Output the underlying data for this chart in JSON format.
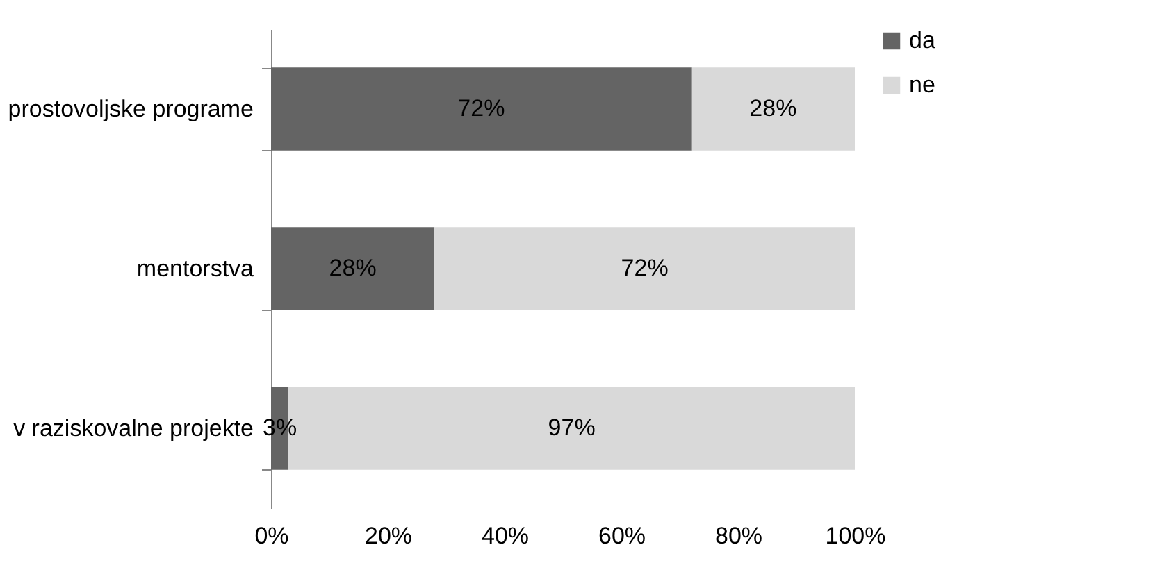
{
  "chart_data": {
    "type": "bar",
    "orientation": "horizontal",
    "stacked": true,
    "categories": [
      "prostovoljske programe",
      "mentorstva",
      "v raziskovalne projekte"
    ],
    "series": [
      {
        "name": "da",
        "color": "#646464",
        "values": [
          72,
          28,
          3
        ],
        "value_labels": [
          "72%",
          "28%",
          "3%"
        ]
      },
      {
        "name": "ne",
        "color": "#d9d9d9",
        "values": [
          28,
          72,
          97
        ],
        "value_labels": [
          "28%",
          "72%",
          "97%"
        ]
      }
    ],
    "xlim": [
      0,
      100
    ],
    "xticks": [
      {
        "value": 0,
        "label": "0%"
      },
      {
        "value": 20,
        "label": "20%"
      },
      {
        "value": 40,
        "label": "40%"
      },
      {
        "value": 60,
        "label": "60%"
      },
      {
        "value": 80,
        "label": "80%"
      },
      {
        "value": 100,
        "label": "100%"
      }
    ],
    "grid": false,
    "legend": "right"
  }
}
